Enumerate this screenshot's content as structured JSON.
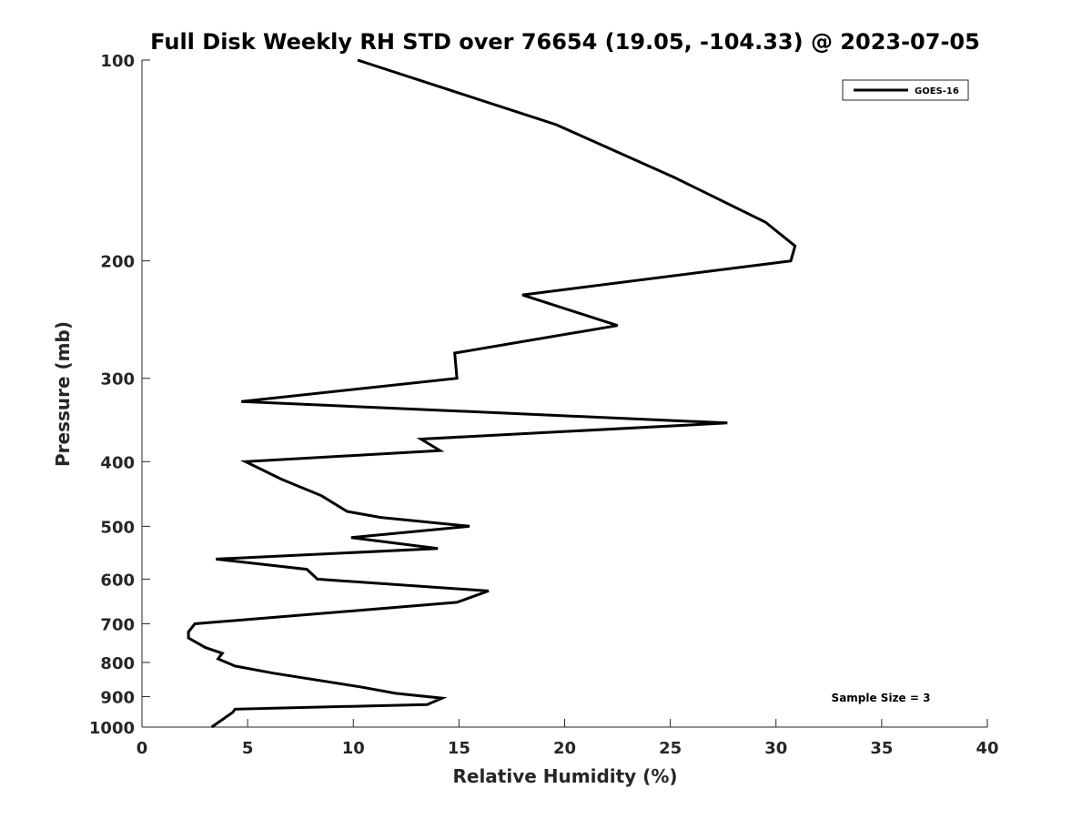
{
  "chart_data": {
    "type": "line",
    "title": "Full Disk Weekly RH STD over 76654 (19.05, -104.33) @ 2023-07-05",
    "xlabel": "Relative Humidity (%)",
    "ylabel": "Pressure (mb)",
    "xlim": [
      0,
      40
    ],
    "ylim": [
      100,
      1000
    ],
    "yscale": "log",
    "y_reversed": true,
    "grid": false,
    "legend_position": "top-right",
    "x_ticks": [
      "0",
      "5",
      "10",
      "15",
      "20",
      "25",
      "30",
      "35",
      "40"
    ],
    "x_tick_values": [
      0,
      5,
      10,
      15,
      20,
      25,
      30,
      35,
      40
    ],
    "y_ticks": [
      "100",
      "200",
      "300",
      "400",
      "500",
      "600",
      "700",
      "800",
      "900",
      "1000"
    ],
    "y_tick_values": [
      100,
      200,
      300,
      400,
      500,
      600,
      700,
      800,
      900,
      1000
    ],
    "series": [
      {
        "name": "GOES-16",
        "color": "#000000",
        "points": [
          [
            10.2,
            100
          ],
          [
            19.6,
            125
          ],
          [
            25.2,
            150
          ],
          [
            29.5,
            175
          ],
          [
            30.9,
            190
          ],
          [
            30.7,
            200
          ],
          [
            18.0,
            225
          ],
          [
            22.5,
            250
          ],
          [
            14.8,
            275
          ],
          [
            14.9,
            300
          ],
          [
            4.7,
            325
          ],
          [
            27.7,
            350
          ],
          [
            13.2,
            370
          ],
          [
            14.1,
            385
          ],
          [
            4.9,
            400
          ],
          [
            6.6,
            425
          ],
          [
            8.5,
            450
          ],
          [
            9.7,
            475
          ],
          [
            11.3,
            485
          ],
          [
            15.5,
            500
          ],
          [
            9.9,
            520
          ],
          [
            14.0,
            540
          ],
          [
            3.5,
            560
          ],
          [
            7.8,
            580
          ],
          [
            8.3,
            600
          ],
          [
            16.4,
            625
          ],
          [
            14.9,
            650
          ],
          [
            2.5,
            700
          ],
          [
            2.2,
            720
          ],
          [
            2.2,
            735
          ],
          [
            3.0,
            760
          ],
          [
            3.8,
            775
          ],
          [
            3.6,
            790
          ],
          [
            4.4,
            810
          ],
          [
            6.2,
            830
          ],
          [
            10.3,
            870
          ],
          [
            12.0,
            890
          ],
          [
            14.2,
            905
          ],
          [
            13.5,
            925
          ],
          [
            4.4,
            940
          ],
          [
            4.3,
            950
          ],
          [
            3.3,
            1000
          ]
        ]
      }
    ],
    "annotation": "Sample Size = 3"
  }
}
